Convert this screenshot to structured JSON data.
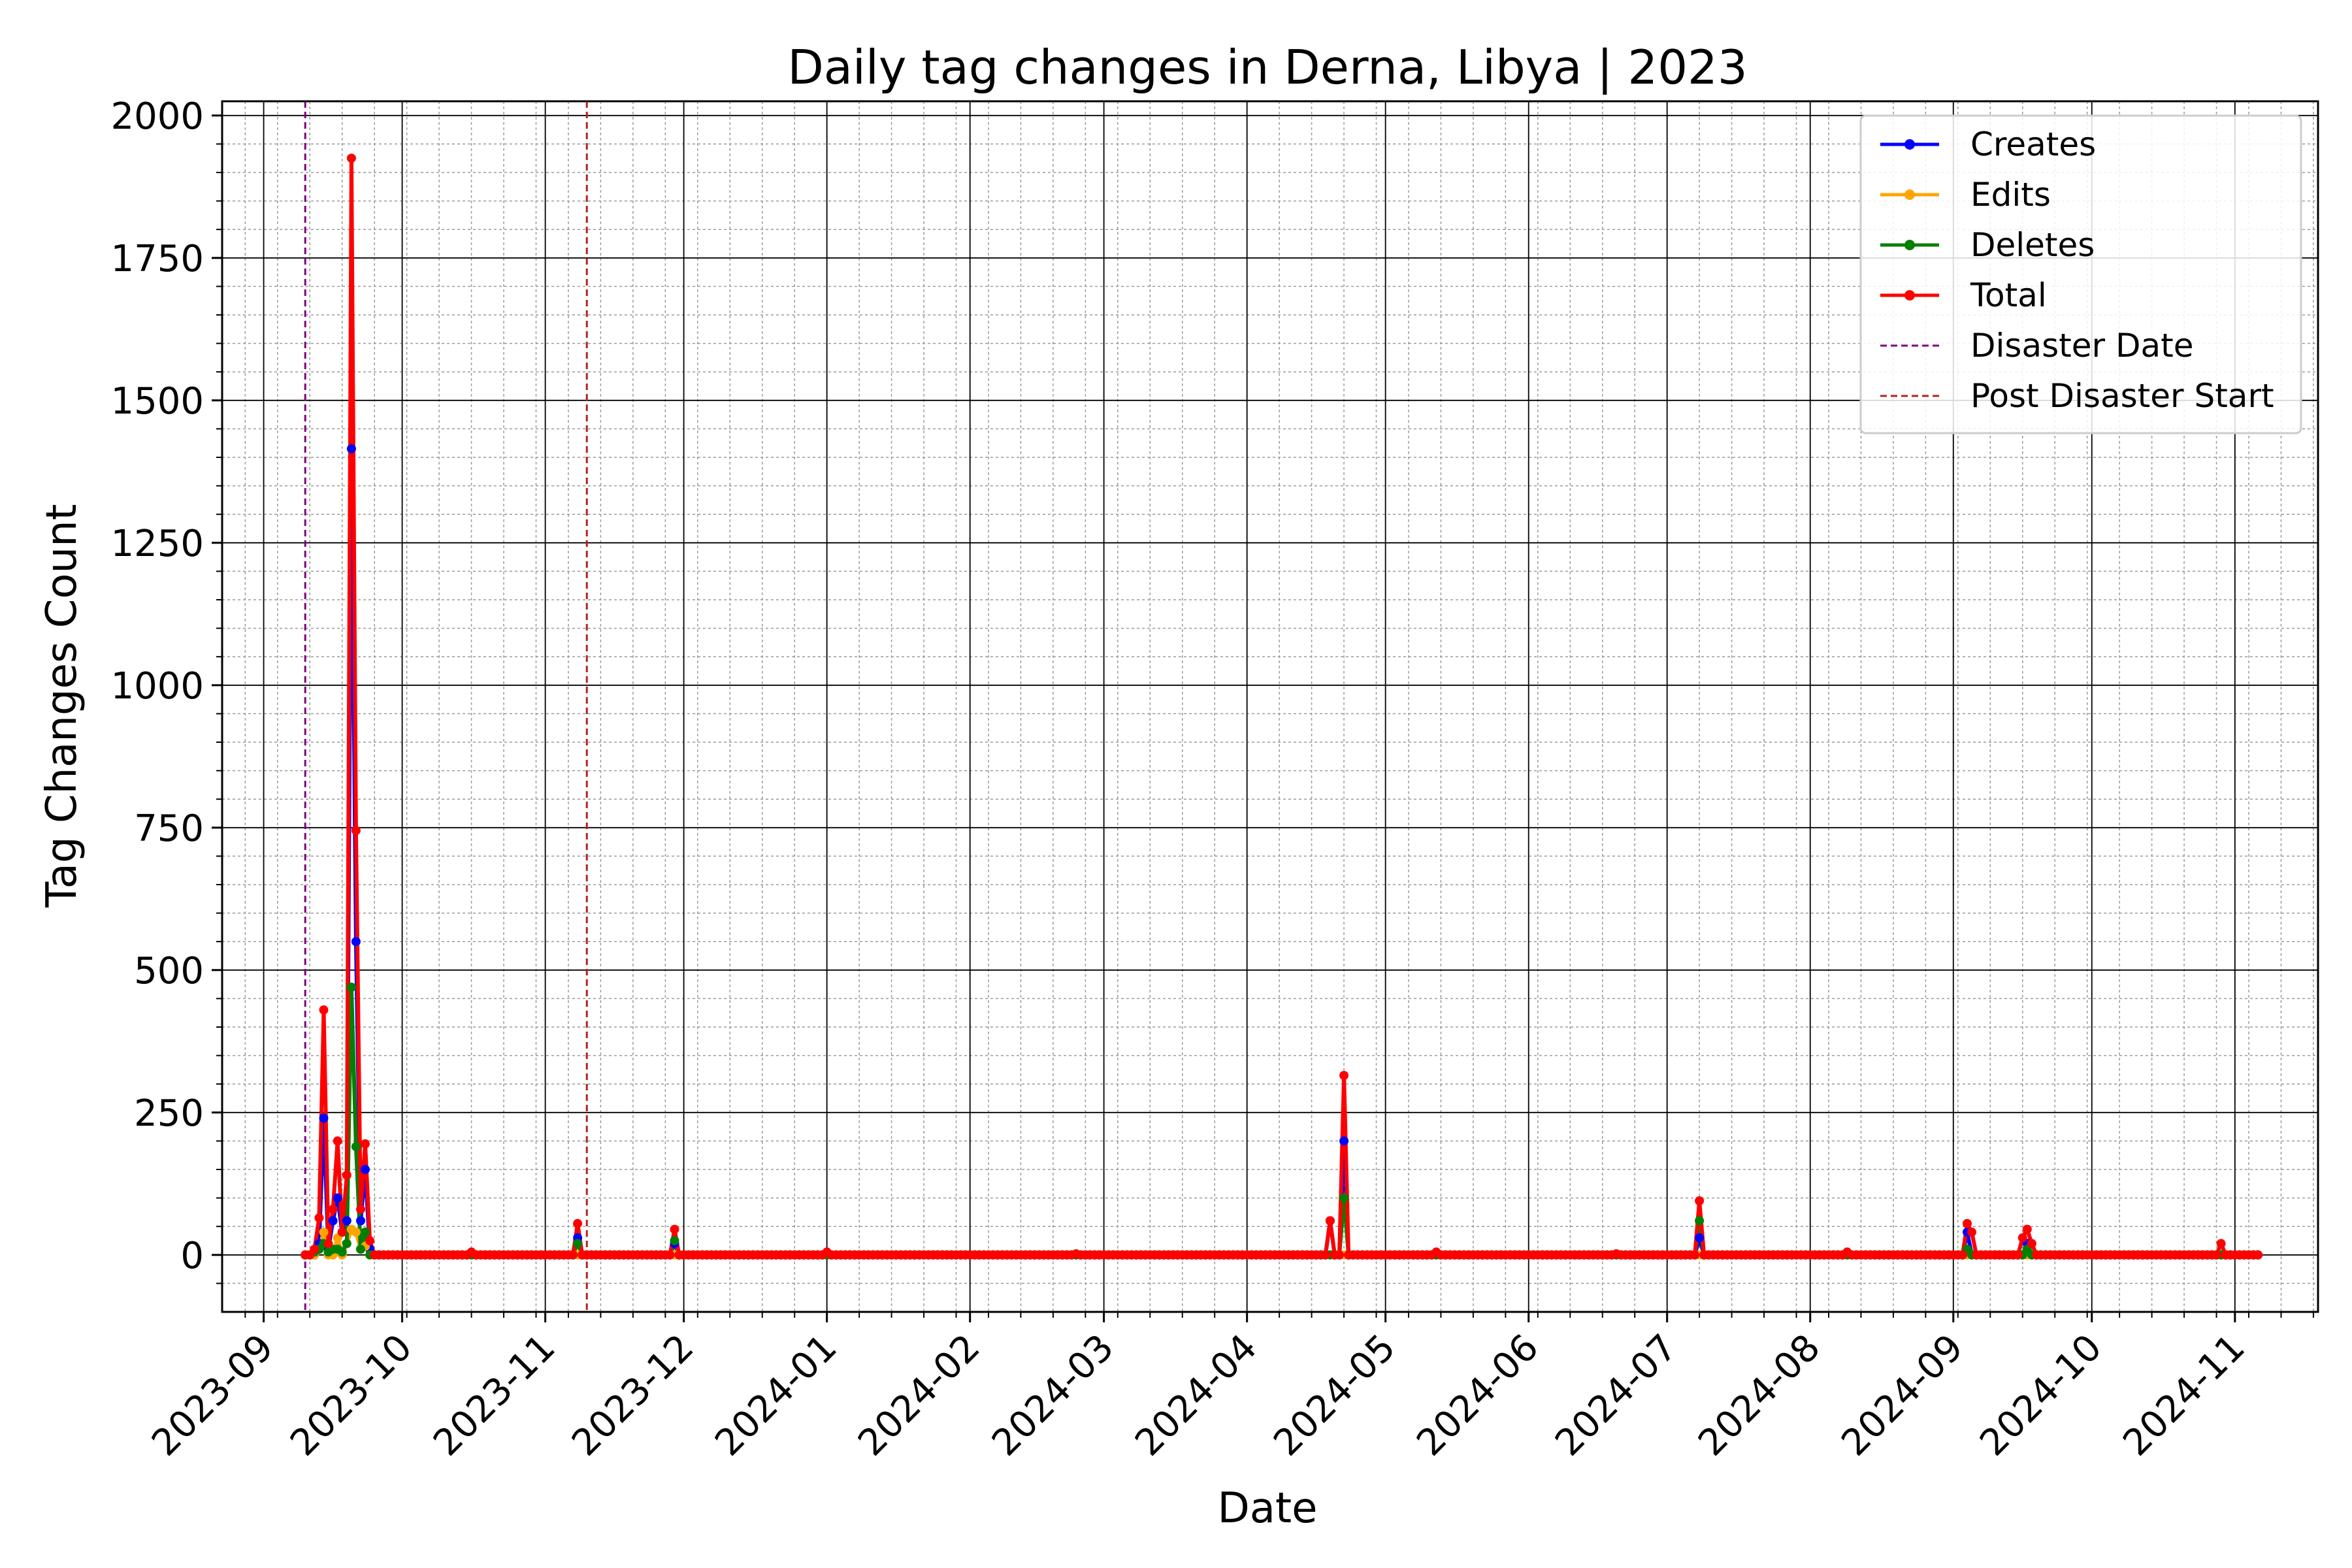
{
  "chart_data": {
    "type": "line",
    "title": "Daily tag changes in Derna, Libya | 2023",
    "xlabel": "Date",
    "ylabel": "Tag Changes Count",
    "x_type": "date",
    "xlim": [
      "2023-08-23",
      "2024-11-19"
    ],
    "ylim": [
      -100,
      2025
    ],
    "y_ticks": [
      0,
      250,
      500,
      750,
      1000,
      1250,
      1500,
      1750,
      2000
    ],
    "x_ticks": [
      "2023-09",
      "2023-10",
      "2023-11",
      "2023-12",
      "2024-01",
      "2024-02",
      "2024-03",
      "2024-04",
      "2024-05",
      "2024-06",
      "2024-07",
      "2024-08",
      "2024-09",
      "2024-10",
      "2024-11"
    ],
    "grid": {
      "major": true,
      "minor": true
    },
    "legend_position": "top-right",
    "baseline_range": [
      "2023-09-10",
      "2024-11-06"
    ],
    "vlines": [
      {
        "name": "Disaster Date",
        "date": "2023-09-10",
        "color": "#800080"
      },
      {
        "name": "Post Disaster Start",
        "date": "2023-11-10",
        "color": "#b22222"
      }
    ],
    "series": [
      {
        "name": "Creates",
        "color": "#0000ff",
        "points": [
          [
            "2023-09-13",
            20
          ],
          [
            "2023-09-14",
            240
          ],
          [
            "2023-09-15",
            10
          ],
          [
            "2023-09-16",
            60
          ],
          [
            "2023-09-17",
            100
          ],
          [
            "2023-09-18",
            40
          ],
          [
            "2023-09-19",
            60
          ],
          [
            "2023-09-20",
            1415
          ],
          [
            "2023-09-21",
            550
          ],
          [
            "2023-09-22",
            60
          ],
          [
            "2023-09-23",
            150
          ],
          [
            "2023-09-24",
            10
          ],
          [
            "2023-11-08",
            30
          ],
          [
            "2023-11-29",
            20
          ],
          [
            "2024-04-19",
            60
          ],
          [
            "2024-04-22",
            200
          ],
          [
            "2024-07-08",
            30
          ],
          [
            "2024-09-04",
            40
          ],
          [
            "2024-09-17",
            20
          ]
        ]
      },
      {
        "name": "Edits",
        "color": "#ffa500",
        "points": [
          [
            "2023-09-13",
            10
          ],
          [
            "2023-09-14",
            40
          ],
          [
            "2023-09-17",
            30
          ],
          [
            "2023-09-19",
            20
          ],
          [
            "2023-09-20",
            45
          ],
          [
            "2023-09-21",
            40
          ],
          [
            "2023-09-22",
            10
          ],
          [
            "2023-09-23",
            15
          ]
        ]
      },
      {
        "name": "Deletes",
        "color": "#008000",
        "points": [
          [
            "2023-09-12",
            5
          ],
          [
            "2023-09-13",
            10
          ],
          [
            "2023-09-14",
            20
          ],
          [
            "2023-09-15",
            5
          ],
          [
            "2023-09-16",
            10
          ],
          [
            "2023-09-17",
            10
          ],
          [
            "2023-09-18",
            5
          ],
          [
            "2023-09-19",
            20
          ],
          [
            "2023-09-20",
            470
          ],
          [
            "2023-09-21",
            190
          ],
          [
            "2023-09-22",
            10
          ],
          [
            "2023-09-23",
            40
          ],
          [
            "2023-11-08",
            20
          ],
          [
            "2023-11-29",
            25
          ],
          [
            "2024-04-22",
            100
          ],
          [
            "2024-07-08",
            60
          ],
          [
            "2024-09-04",
            10
          ],
          [
            "2024-09-17",
            10
          ]
        ]
      },
      {
        "name": "Total",
        "color": "#ff0000",
        "points": [
          [
            "2023-09-10",
            0
          ],
          [
            "2023-09-12",
            10
          ],
          [
            "2023-09-13",
            65
          ],
          [
            "2023-09-14",
            430
          ],
          [
            "2023-09-15",
            20
          ],
          [
            "2023-09-16",
            80
          ],
          [
            "2023-09-17",
            200
          ],
          [
            "2023-09-18",
            40
          ],
          [
            "2023-09-19",
            140
          ],
          [
            "2023-09-20",
            1925
          ],
          [
            "2023-09-21",
            745
          ],
          [
            "2023-09-22",
            80
          ],
          [
            "2023-09-23",
            195
          ],
          [
            "2023-09-24",
            25
          ],
          [
            "2023-10-16",
            5
          ],
          [
            "2023-11-08",
            55
          ],
          [
            "2023-11-29",
            45
          ],
          [
            "2024-01-01",
            5
          ],
          [
            "2024-02-24",
            2
          ],
          [
            "2024-04-19",
            60
          ],
          [
            "2024-04-22",
            315
          ],
          [
            "2024-05-12",
            5
          ],
          [
            "2024-06-20",
            2
          ],
          [
            "2024-07-08",
            95
          ],
          [
            "2024-08-09",
            5
          ],
          [
            "2024-09-04",
            55
          ],
          [
            "2024-09-05",
            40
          ],
          [
            "2024-09-16",
            30
          ],
          [
            "2024-09-17",
            45
          ],
          [
            "2024-09-18",
            20
          ],
          [
            "2024-10-29",
            20
          ],
          [
            "2024-11-06",
            0
          ]
        ]
      }
    ],
    "legend": [
      {
        "name": "Creates",
        "color": "#0000ff",
        "style": "line-marker"
      },
      {
        "name": "Edits",
        "color": "#ffa500",
        "style": "line-marker"
      },
      {
        "name": "Deletes",
        "color": "#008000",
        "style": "line-marker"
      },
      {
        "name": "Total",
        "color": "#ff0000",
        "style": "line-marker"
      },
      {
        "name": "Disaster Date",
        "color": "#800080",
        "style": "dashed"
      },
      {
        "name": "Post Disaster Start",
        "color": "#b22222",
        "style": "dashed"
      }
    ]
  }
}
